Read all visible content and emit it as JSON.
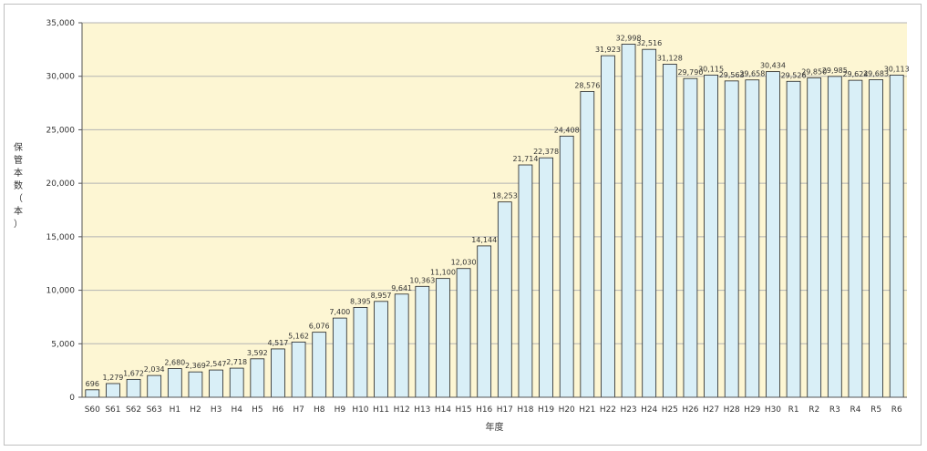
{
  "chart_data": {
    "type": "bar",
    "title": "",
    "xlabel": "年度",
    "ylabel": "保管本数（本）",
    "ylim": [
      0,
      35000
    ],
    "yticks": [
      0,
      5000,
      10000,
      15000,
      20000,
      25000,
      30000,
      35000
    ],
    "ytick_labels": [
      "0",
      "5,000",
      "10,000",
      "15,000",
      "20,000",
      "25,000",
      "30,000",
      "35,000"
    ],
    "grid": true,
    "legend": "none",
    "categories": [
      "S60",
      "S61",
      "S62",
      "S63",
      "H1",
      "H2",
      "H3",
      "H4",
      "H5",
      "H6",
      "H7",
      "H8",
      "H9",
      "H10",
      "H11",
      "H12",
      "H13",
      "H14",
      "H15",
      "H16",
      "H17",
      "H18",
      "H19",
      "H20",
      "H21",
      "H22",
      "H23",
      "H24",
      "H25",
      "H26",
      "H27",
      "H28",
      "H29",
      "H30",
      "R1",
      "R2",
      "R3",
      "R4",
      "R5",
      "R6"
    ],
    "values": [
      696,
      1279,
      1672,
      2034,
      2680,
      2369,
      2547,
      2718,
      3592,
      4517,
      5162,
      6076,
      7400,
      8395,
      8957,
      9641,
      10363,
      11100,
      12030,
      14144,
      18253,
      21714,
      22378,
      24408,
      28576,
      31923,
      32998,
      32516,
      31128,
      29790,
      30115,
      29563,
      29658,
      30434,
      29526,
      29850,
      29985,
      29624,
      29683,
      30113
    ],
    "value_labels": [
      "696",
      "1,279",
      "1,672",
      "2,034",
      "2,680",
      "2,369",
      "2,547",
      "2,718",
      "3,592",
      "4,517",
      "5,162",
      "6,076",
      "7,400",
      "8,395",
      "8,957",
      "9,641",
      "10,363",
      "11,100",
      "12,030",
      "14,144",
      "18,253",
      "21,714",
      "22,378",
      "24,408",
      "28,576",
      "31,923",
      "32,998",
      "32,516",
      "31,128",
      "29,790",
      "30,115",
      "29,563",
      "29,658",
      "30,434",
      "29,526",
      "29,850",
      "29,985",
      "29,624",
      "29,683",
      "30,113"
    ],
    "colors": {
      "plot_background": "#fdf6d3",
      "bar_fill": "#d9eff7",
      "bar_stroke": "#222222",
      "grid": "#b3b3b3",
      "axis": "#555555"
    }
  }
}
